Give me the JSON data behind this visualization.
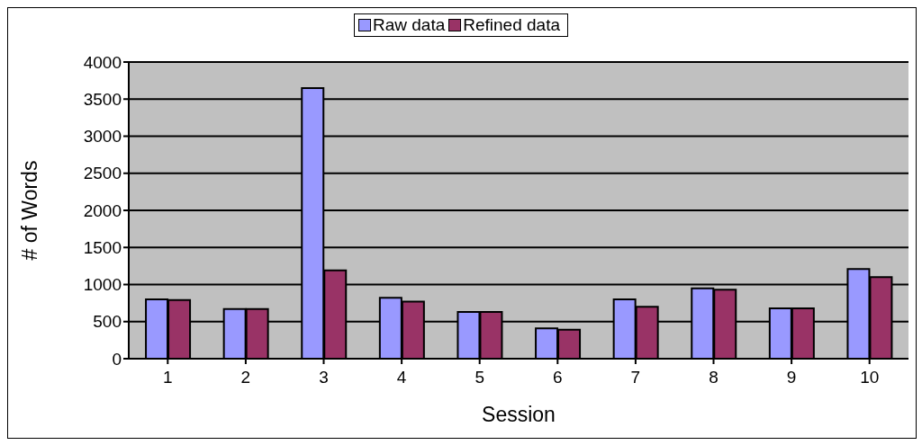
{
  "chart_data": {
    "type": "bar",
    "xlabel": "Session",
    "ylabel": "# of Words",
    "categories": [
      "1",
      "2",
      "3",
      "4",
      "5",
      "6",
      "7",
      "8",
      "9",
      "10"
    ],
    "series": [
      {
        "name": "Raw data",
        "color": "#9999ff",
        "values": [
          800,
          670,
          3650,
          820,
          630,
          410,
          800,
          950,
          680,
          1210
        ]
      },
      {
        "name": "Refined data",
        "color": "#993366",
        "values": [
          790,
          670,
          1190,
          770,
          630,
          390,
          700,
          930,
          680,
          1100
        ]
      }
    ],
    "ylim": [
      0,
      4000
    ],
    "yticks": [
      0,
      500,
      1000,
      1500,
      2000,
      2500,
      3000,
      3500,
      4000
    ],
    "grid": "y",
    "legend": "top"
  }
}
